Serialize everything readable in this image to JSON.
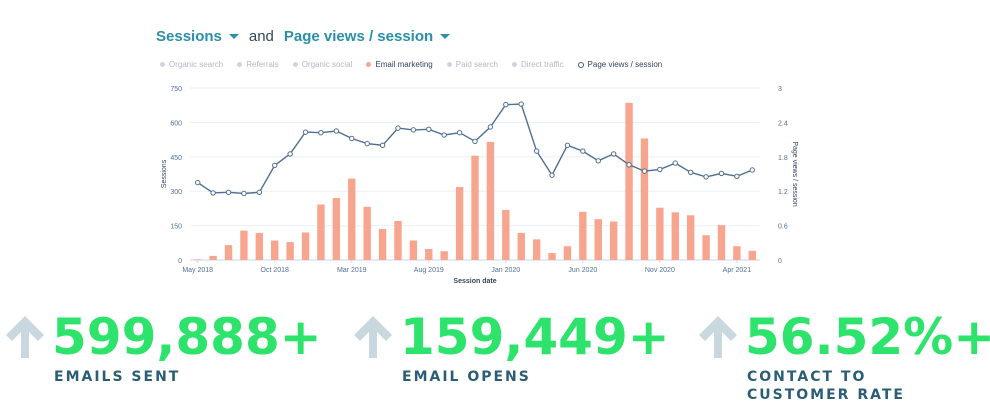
{
  "header": {
    "metric_primary": "Sessions",
    "joiner": "and",
    "metric_secondary": "Page views / session"
  },
  "legend": [
    {
      "label": "Organic search",
      "active": false
    },
    {
      "label": "Referrals",
      "active": false
    },
    {
      "label": "Organic social",
      "active": false
    },
    {
      "label": "Email marketing",
      "active": true,
      "kind": "bar"
    },
    {
      "label": "Paid search",
      "active": false
    },
    {
      "label": "Direct traffic",
      "active": false
    },
    {
      "label": "Page views / session",
      "active": true,
      "kind": "line"
    }
  ],
  "chart_data": {
    "type": "bar",
    "xlabel": "Session date",
    "ylabel": "Sessions",
    "y2label": "Page views / session",
    "ylim": [
      0,
      750
    ],
    "y2lim": [
      0,
      3
    ],
    "yticks": [
      "0",
      "150",
      "300",
      "450",
      "600",
      "750"
    ],
    "y2ticks": [
      "0",
      "0.6",
      "1.2",
      "1.8",
      "2.4",
      "3"
    ],
    "xtick_labels": [
      {
        "index": 0,
        "label": "May 2018"
      },
      {
        "index": 5,
        "label": "Oct 2018"
      },
      {
        "index": 10,
        "label": "Mar 2019"
      },
      {
        "index": 15,
        "label": "Aug 2019"
      },
      {
        "index": 20,
        "label": "Jan 2020"
      },
      {
        "index": 25,
        "label": "Jun 2020"
      },
      {
        "index": 30,
        "label": "Nov 2020"
      },
      {
        "index": 35,
        "label": "Apr 2021"
      }
    ],
    "bar_color": "#f8a58f",
    "line_color": "#516f90",
    "series": [
      {
        "name": "Email marketing",
        "kind": "bar",
        "values": [
          3,
          18,
          65,
          128,
          118,
          85,
          78,
          120,
          242,
          270,
          355,
          232,
          135,
          170,
          85,
          48,
          38,
          318,
          455,
          515,
          218,
          118,
          90,
          30,
          60,
          210,
          178,
          168,
          685,
          530,
          228,
          208,
          195,
          108,
          152,
          60,
          40
        ]
      },
      {
        "name": "Page views / session",
        "kind": "line",
        "values": [
          1.35,
          1.17,
          1.18,
          1.16,
          1.18,
          1.65,
          1.85,
          2.23,
          2.22,
          2.25,
          2.12,
          2.03,
          2.0,
          2.3,
          2.27,
          2.28,
          2.18,
          2.22,
          2.07,
          2.32,
          2.71,
          2.72,
          1.9,
          1.48,
          2.0,
          1.9,
          1.73,
          1.85,
          1.66,
          1.55,
          1.58,
          1.69,
          1.53,
          1.45,
          1.51,
          1.46,
          1.57
        ]
      }
    ]
  },
  "stats": [
    {
      "value": "599,888+",
      "label": [
        "EMAILS SENT"
      ]
    },
    {
      "value": "159,449+",
      "label": [
        "EMAIL OPENS"
      ]
    },
    {
      "value": "56.52%+",
      "label": [
        "CONTACT TO",
        "CUSTOMER RATE"
      ]
    }
  ]
}
